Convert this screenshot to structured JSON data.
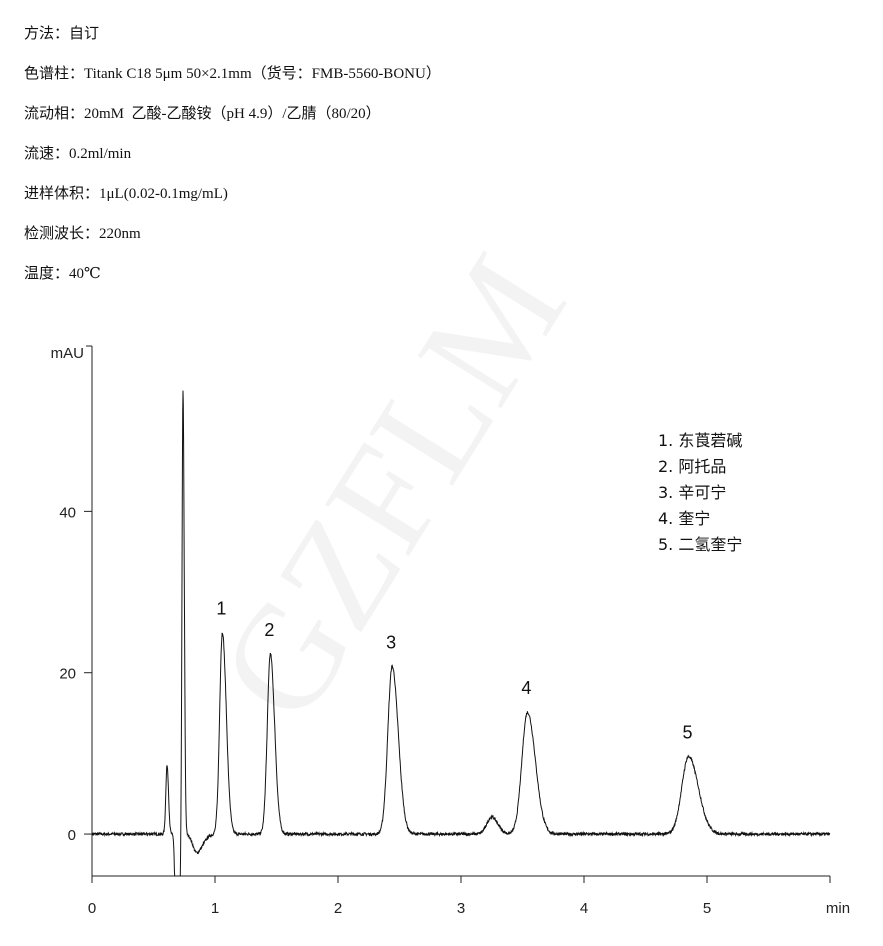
{
  "conditions": [
    "方法：自订",
    "色谱柱：Titank C18 5μm 50×2.1mm（货号：FMB-5560-BONU）",
    "流动相：20mM  乙酸-乙酸铵（pH 4.9）/乙腈（80/20）",
    "流速：0.2ml/min",
    "进样体积：1μL(0.02-0.1mg/mL)",
    "检测波长：220nm",
    "温度：40℃"
  ],
  "watermark": "GZFLM",
  "chart_data": {
    "type": "line",
    "xlabel": "min",
    "ylabel": "mAU",
    "xlim": [
      0,
      6
    ],
    "ylim": [
      -5.2,
      60.5
    ],
    "xticks": [
      "0",
      "1",
      "2",
      "3",
      "4",
      "5"
    ],
    "yticks": [
      "0",
      "20",
      "40"
    ],
    "grid": false,
    "line_color": "#111111",
    "peaks": [
      {
        "label": "",
        "time": 0.61,
        "height": 8.5,
        "sigma_left": 0.01,
        "sigma_right": 0.012
      },
      {
        "label": "",
        "time": 0.695,
        "height": -40,
        "sigma_left": 0.012,
        "sigma_right": 0.012
      },
      {
        "label": "",
        "time": 0.74,
        "height": 55,
        "sigma_left": 0.008,
        "sigma_right": 0.01
      },
      {
        "label": "",
        "time": 0.85,
        "height": -2.3,
        "sigma_left": 0.03,
        "sigma_right": 0.05
      },
      {
        "label": "1",
        "time": 1.06,
        "height": 25,
        "sigma_left": 0.022,
        "sigma_right": 0.032
      },
      {
        "label": "2",
        "time": 1.45,
        "height": 22.3,
        "sigma_left": 0.025,
        "sigma_right": 0.035
      },
      {
        "label": "3",
        "time": 2.44,
        "height": 20.8,
        "sigma_left": 0.035,
        "sigma_right": 0.05
      },
      {
        "label": "",
        "time": 3.25,
        "height": 2.1,
        "sigma_left": 0.04,
        "sigma_right": 0.05
      },
      {
        "label": "4",
        "time": 3.54,
        "height": 15.1,
        "sigma_left": 0.045,
        "sigma_right": 0.065
      },
      {
        "label": "5",
        "time": 4.85,
        "height": 9.6,
        "sigma_left": 0.055,
        "sigma_right": 0.08
      }
    ],
    "legend": [
      "1. 东莨菪碱",
      "2. 阿托品",
      "3. 辛可宁",
      "4. 奎宁",
      "5. 二氢奎宁"
    ],
    "legend_position": "top-right"
  }
}
